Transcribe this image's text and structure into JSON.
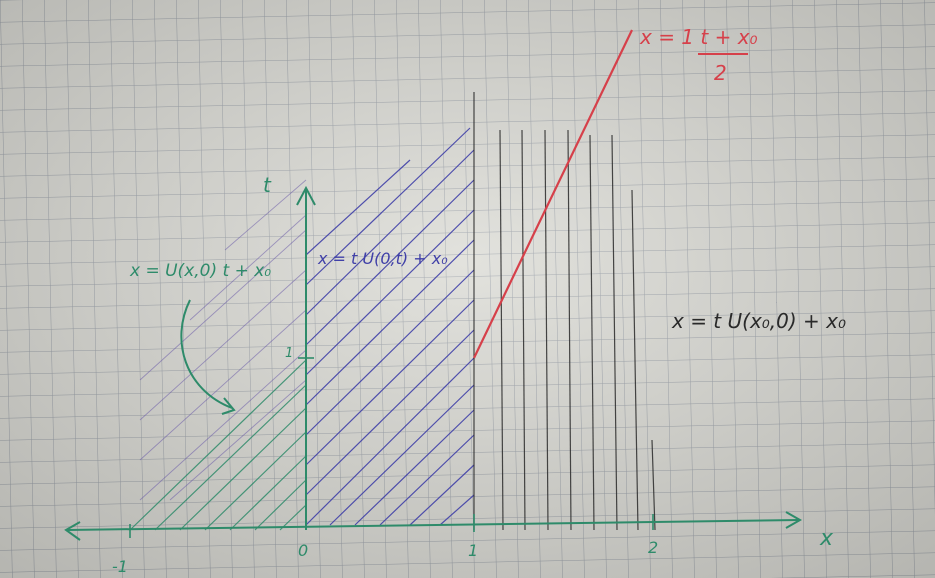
{
  "photo": {
    "paper_color": "#dcdcd6",
    "grid_color": "#9aa0a8",
    "ink": {
      "green": "#2e8b6a",
      "blue": "#4040a8",
      "red": "#d6404a",
      "black": "#2a2a2a"
    }
  },
  "axes": {
    "t_label": "t",
    "x_label": "x",
    "ticks": {
      "minus_one": "-1",
      "zero": "0",
      "one_x": "1",
      "two_x": "2",
      "one_t": "1"
    }
  },
  "annotations": {
    "red_formula_top": "x = 1 t + x₀",
    "red_formula_denominator": "2",
    "green_formula": "x = U(x,0) t + x₀",
    "blue_formula": "x = t U(0,t) + x₀",
    "black_formula": "x = t U(x₀,0) + x₀"
  }
}
